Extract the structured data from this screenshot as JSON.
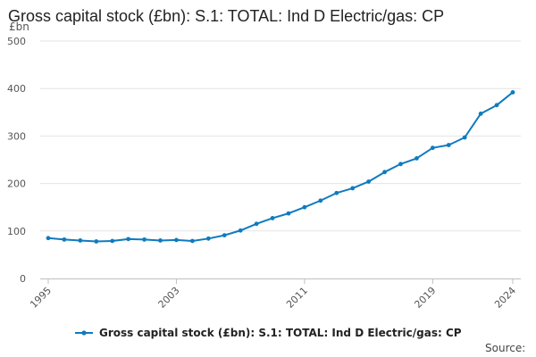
{
  "chart_data": {
    "type": "line",
    "title": "Gross capital stock (£bn): S.1: TOTAL: Ind D Electric/gas: CP",
    "ylabel": "£bn",
    "xlabel": "",
    "xlim": [
      1995,
      2024
    ],
    "ylim": [
      0,
      500
    ],
    "y_ticks": [
      0,
      100,
      200,
      300,
      400,
      500
    ],
    "x_ticks": [
      1995,
      2003,
      2011,
      2019,
      2024
    ],
    "grid": true,
    "legend_position": "bottom",
    "series": [
      {
        "name": "Gross capital stock (£bn): S.1: TOTAL: Ind D Electric/gas: CP",
        "color": "#0f7bbf",
        "x": [
          1995,
          1996,
          1997,
          1998,
          1999,
          2000,
          2001,
          2002,
          2003,
          2004,
          2005,
          2006,
          2007,
          2008,
          2009,
          2010,
          2011,
          2012,
          2013,
          2014,
          2015,
          2016,
          2017,
          2018,
          2019,
          2020,
          2021,
          2022,
          2023,
          2024
        ],
        "values": [
          85,
          82,
          80,
          78,
          79,
          83,
          82,
          80,
          81,
          79,
          84,
          91,
          101,
          115,
          127,
          137,
          150,
          164,
          180,
          190,
          204,
          224,
          241,
          253,
          275,
          281,
          297,
          347,
          365,
          392
        ]
      }
    ],
    "source_label": "Source:"
  }
}
